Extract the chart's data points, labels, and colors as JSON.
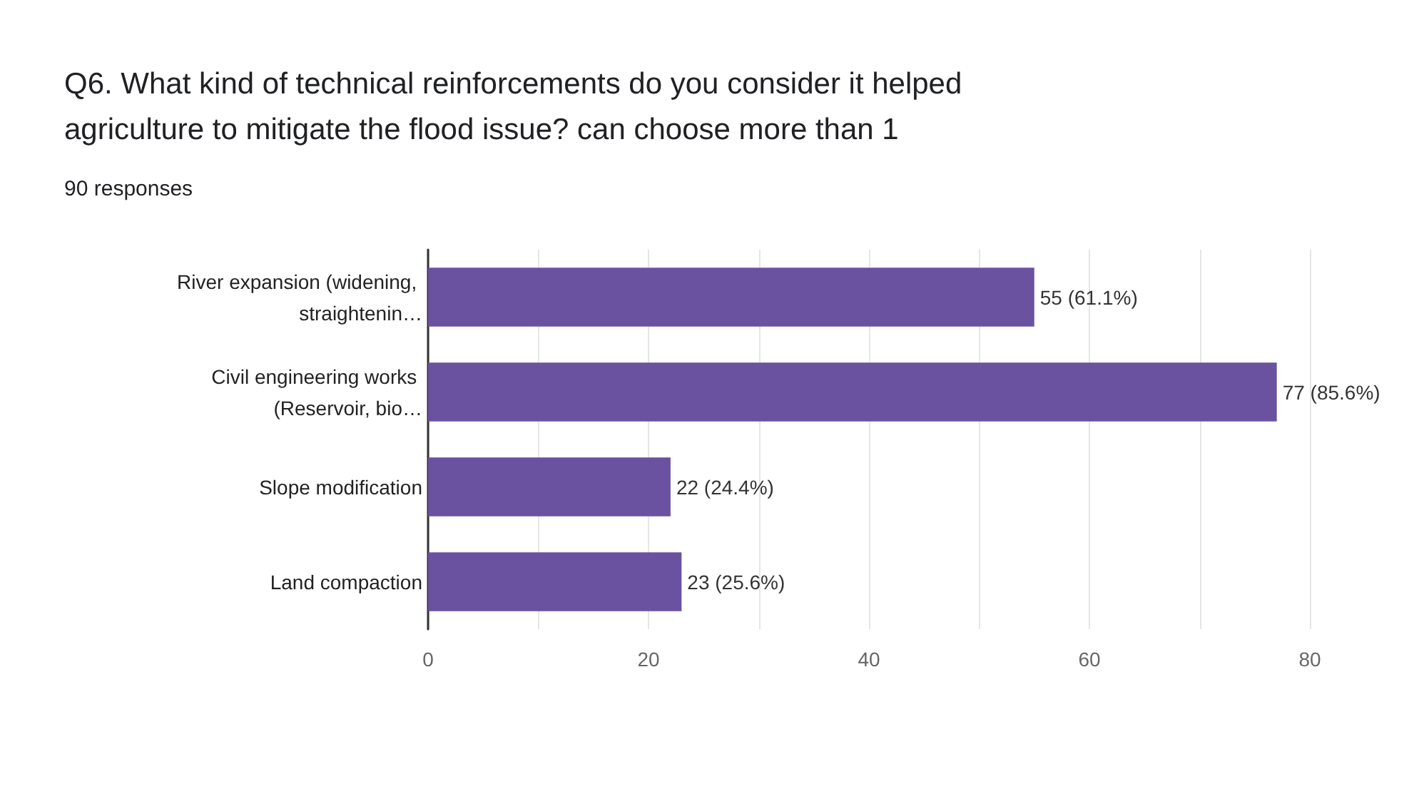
{
  "chart_data": {
    "type": "bar",
    "orientation": "horizontal",
    "title": "Q6. What kind of technical reinforcements do you consider it helped agriculture to mitigate the flood issue? can choose more than 1",
    "subtitle": "90 responses",
    "categories": [
      "River expansion (widening, straightenin…",
      "Civil engineering works (Reservoir, bio…",
      "Slope modification",
      "Land compaction"
    ],
    "values": [
      55,
      77,
      22,
      23
    ],
    "color": "#6a52a0",
    "value_labels": [
      "55 (61.1%)",
      "77 (85.6%)",
      "22 (24.4%)",
      "23 (25.6%)"
    ],
    "xlim": [
      0,
      80
    ],
    "xticks": [
      0,
      {
        "value": 10,
        "label": null
      },
      20,
      {
        "value": 30,
        "label": null
      },
      40,
      {
        "value": 50,
        "label": null
      },
      60,
      {
        "value": 70,
        "label": null
      },
      80
    ],
    "grid": "x"
  }
}
